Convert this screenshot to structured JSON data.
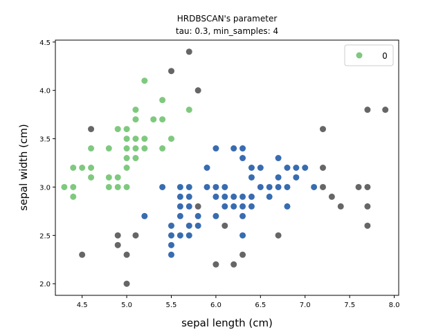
{
  "chart_data": {
    "type": "scatter",
    "title_line1": "HRDBSCAN's parameter",
    "title_line2": "tau: 0.3, min_samples: 4",
    "xlabel": "sepal length (cm)",
    "ylabel": "sepal width (cm)",
    "xlim": [
      4.2,
      8.05
    ],
    "ylim": [
      1.88,
      4.52
    ],
    "xticks": [
      4.5,
      5.0,
      5.5,
      6.0,
      6.5,
      7.0,
      7.5,
      8.0
    ],
    "xtick_labels": [
      "4.5",
      "5.0",
      "5.5",
      "6.0",
      "6.5",
      "7.0",
      "7.5",
      "8.0"
    ],
    "yticks": [
      2.0,
      2.5,
      3.0,
      3.5,
      4.0,
      4.5
    ],
    "ytick_labels": [
      "2.0",
      "2.5",
      "3.0",
      "3.5",
      "4.0",
      "4.5"
    ],
    "grid": false,
    "legend": {
      "placement": "top-right",
      "entries": [
        {
          "label": "0",
          "color": "#7fc97f"
        }
      ]
    },
    "series": [
      {
        "name": "0",
        "color": "#7fc97f",
        "points": [
          [
            4.3,
            3.0
          ],
          [
            4.4,
            3.0
          ],
          [
            4.4,
            2.9
          ],
          [
            4.4,
            3.2
          ],
          [
            4.5,
            3.2
          ],
          [
            4.6,
            3.1
          ],
          [
            4.6,
            3.2
          ],
          [
            4.6,
            3.4
          ],
          [
            4.8,
            3.0
          ],
          [
            4.8,
            3.1
          ],
          [
            4.8,
            3.4
          ],
          [
            4.9,
            3.0
          ],
          [
            4.9,
            3.1
          ],
          [
            4.9,
            3.6
          ],
          [
            5.0,
            3.0
          ],
          [
            5.0,
            3.2
          ],
          [
            5.0,
            3.3
          ],
          [
            5.0,
            3.4
          ],
          [
            5.0,
            3.5
          ],
          [
            5.0,
            3.6
          ],
          [
            5.1,
            3.3
          ],
          [
            5.1,
            3.4
          ],
          [
            5.1,
            3.5
          ],
          [
            5.1,
            3.7
          ],
          [
            5.1,
            3.8
          ],
          [
            5.2,
            3.4
          ],
          [
            5.2,
            3.5
          ],
          [
            5.2,
            4.1
          ],
          [
            5.3,
            3.7
          ],
          [
            5.4,
            3.4
          ],
          [
            5.4,
            3.7
          ],
          [
            5.4,
            3.9
          ],
          [
            5.5,
            3.5
          ],
          [
            5.7,
            3.8
          ]
        ]
      },
      {
        "name": "",
        "color": "#386cb0",
        "points": [
          [
            5.2,
            2.7
          ],
          [
            5.4,
            3.0
          ],
          [
            5.5,
            2.3
          ],
          [
            5.5,
            2.4
          ],
          [
            5.5,
            2.5
          ],
          [
            5.5,
            2.6
          ],
          [
            5.6,
            2.5
          ],
          [
            5.6,
            2.7
          ],
          [
            5.6,
            2.8
          ],
          [
            5.6,
            2.9
          ],
          [
            5.6,
            3.0
          ],
          [
            5.7,
            2.5
          ],
          [
            5.7,
            2.6
          ],
          [
            5.7,
            2.8
          ],
          [
            5.7,
            2.9
          ],
          [
            5.7,
            3.0
          ],
          [
            5.8,
            2.6
          ],
          [
            5.8,
            2.7
          ],
          [
            5.9,
            3.0
          ],
          [
            5.9,
            3.2
          ],
          [
            6.0,
            2.7
          ],
          [
            6.0,
            2.9
          ],
          [
            6.0,
            3.0
          ],
          [
            6.0,
            3.4
          ],
          [
            6.1,
            2.8
          ],
          [
            6.1,
            2.9
          ],
          [
            6.1,
            3.0
          ],
          [
            6.2,
            2.8
          ],
          [
            6.2,
            2.9
          ],
          [
            6.2,
            3.4
          ],
          [
            6.3,
            2.5
          ],
          [
            6.3,
            2.7
          ],
          [
            6.3,
            2.8
          ],
          [
            6.3,
            2.9
          ],
          [
            6.3,
            3.3
          ],
          [
            6.3,
            3.4
          ],
          [
            6.4,
            2.8
          ],
          [
            6.4,
            2.9
          ],
          [
            6.4,
            3.1
          ],
          [
            6.4,
            3.2
          ],
          [
            6.5,
            3.0
          ],
          [
            6.5,
            3.2
          ],
          [
            6.6,
            2.9
          ],
          [
            6.6,
            3.0
          ],
          [
            6.7,
            3.0
          ],
          [
            6.7,
            3.1
          ],
          [
            6.7,
            3.3
          ],
          [
            6.8,
            2.8
          ],
          [
            6.8,
            3.0
          ],
          [
            6.8,
            3.2
          ],
          [
            6.9,
            3.1
          ],
          [
            6.9,
            3.2
          ],
          [
            7.0,
            3.2
          ],
          [
            7.1,
            3.0
          ]
        ]
      },
      {
        "name": "",
        "color": "#666666",
        "points": [
          [
            4.5,
            2.3
          ],
          [
            4.6,
            3.6
          ],
          [
            4.9,
            2.4
          ],
          [
            4.9,
            2.5
          ],
          [
            5.0,
            2.0
          ],
          [
            5.0,
            2.3
          ],
          [
            5.1,
            2.5
          ],
          [
            5.5,
            4.2
          ],
          [
            5.7,
            4.4
          ],
          [
            5.8,
            4.0
          ],
          [
            5.8,
            2.8
          ],
          [
            6.0,
            2.2
          ],
          [
            6.1,
            2.6
          ],
          [
            6.2,
            2.2
          ],
          [
            6.3,
            2.3
          ],
          [
            6.7,
            2.5
          ],
          [
            7.2,
            3.6
          ],
          [
            7.2,
            3.2
          ],
          [
            7.2,
            3.0
          ],
          [
            7.3,
            2.9
          ],
          [
            7.4,
            2.8
          ],
          [
            7.6,
            3.0
          ],
          [
            7.7,
            3.8
          ],
          [
            7.7,
            3.0
          ],
          [
            7.7,
            2.8
          ],
          [
            7.7,
            2.6
          ],
          [
            7.9,
            3.8
          ]
        ]
      }
    ]
  }
}
